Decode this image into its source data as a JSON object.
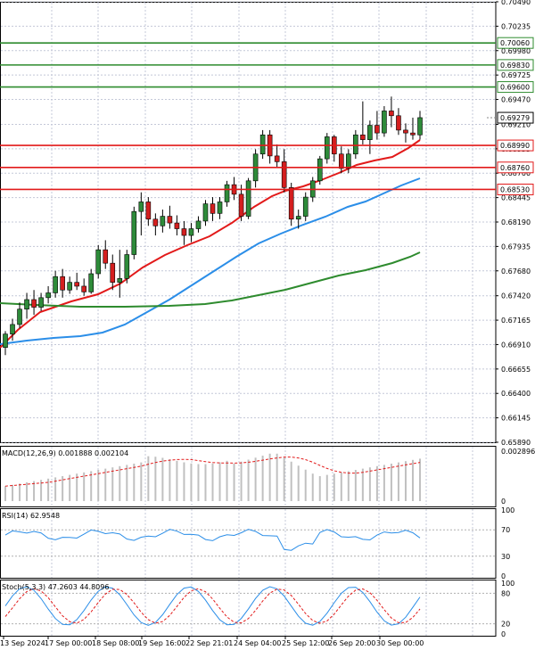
{
  "symbol": "NZDUSD",
  "colors": {
    "bull": "#2e8b3a",
    "bear": "#d41f1f",
    "sma_fast": "#e21a1a",
    "sma_mid": "#2b8ee8",
    "sma_slow": "#2e8b2e",
    "support": "#e21a1a",
    "resistance": "#2e8b2e",
    "grid": "#c4c8d8",
    "macd_hist": "#c0c0c0",
    "macd_signal": "#e21a1a",
    "rsi_line": "#2b8ee8",
    "stoch_main": "#2b8ee8",
    "stoch_signal": "#e21a1a"
  },
  "main_panel": {
    "price_ticks": [
      "0.70490",
      "0.70235",
      "0.69980",
      "0.69725",
      "0.69470",
      "0.69210",
      "0.68955",
      "0.68700",
      "0.68445",
      "0.68190",
      "0.67935",
      "0.67680",
      "0.67420",
      "0.67165",
      "0.66910",
      "0.66655",
      "0.66400",
      "0.66145",
      "0.65890"
    ],
    "current_price": "0.69279",
    "resistance_levels": [
      "0.70060",
      "0.69830",
      "0.69600"
    ],
    "support_levels": [
      "0.68990",
      "0.68760",
      "0.68530"
    ]
  },
  "macd": {
    "label": "MACD(12,26,9) 0.001888 0.002104",
    "ticks": [
      "0.002896",
      "0"
    ]
  },
  "rsi": {
    "label": "RSI(14) 62.9548",
    "ticks": [
      "100",
      "70",
      "30",
      "0"
    ]
  },
  "stoch": {
    "label": "Stoch(5,3,3) 47.2603 44.8096",
    "ticks": [
      "100",
      "80",
      "20",
      "0"
    ]
  },
  "time_labels": [
    "13 Sep 2024",
    "17 Sep 00:00",
    "18 Sep 08:00",
    "19 Sep 16:00",
    "22 Sep 21:01",
    "24 Sep 04:00",
    "25 Sep 12:00",
    "26 Sep 20:00",
    "30 Sep 00:00"
  ],
  "chart_data": {
    "type": "candlestick",
    "y_range": [
      0.6589,
      0.7049
    ],
    "candles": [
      [
        0.6688,
        0.6705,
        0.668,
        0.6702
      ],
      [
        0.6702,
        0.6718,
        0.6695,
        0.6712
      ],
      [
        0.6712,
        0.6735,
        0.6708,
        0.6728
      ],
      [
        0.6728,
        0.6745,
        0.6718,
        0.6738
      ],
      [
        0.6738,
        0.6748,
        0.6722,
        0.673
      ],
      [
        0.673,
        0.6745,
        0.6726,
        0.674
      ],
      [
        0.674,
        0.6752,
        0.6734,
        0.6745
      ],
      [
        0.6745,
        0.6768,
        0.674,
        0.6762
      ],
      [
        0.6762,
        0.677,
        0.674,
        0.6748
      ],
      [
        0.6748,
        0.6762,
        0.6744,
        0.6756
      ],
      [
        0.6756,
        0.6766,
        0.6748,
        0.6752
      ],
      [
        0.6752,
        0.676,
        0.6742,
        0.6746
      ],
      [
        0.6746,
        0.677,
        0.6744,
        0.6765
      ],
      [
        0.6765,
        0.6795,
        0.676,
        0.679
      ],
      [
        0.679,
        0.68,
        0.677,
        0.6776
      ],
      [
        0.6776,
        0.6785,
        0.6748,
        0.6756
      ],
      [
        0.6756,
        0.679,
        0.674,
        0.676
      ],
      [
        0.676,
        0.679,
        0.6755,
        0.6785
      ],
      [
        0.6785,
        0.6835,
        0.678,
        0.683
      ],
      [
        0.683,
        0.685,
        0.6805,
        0.684
      ],
      [
        0.684,
        0.6845,
        0.6815,
        0.6822
      ],
      [
        0.6822,
        0.6828,
        0.6805,
        0.6815
      ],
      [
        0.6815,
        0.6832,
        0.6808,
        0.6825
      ],
      [
        0.6825,
        0.6836,
        0.6812,
        0.6818
      ],
      [
        0.6818,
        0.6826,
        0.6805,
        0.6812
      ],
      [
        0.6812,
        0.682,
        0.6795,
        0.6805
      ],
      [
        0.6805,
        0.6818,
        0.6798,
        0.6812
      ],
      [
        0.6812,
        0.6825,
        0.6808,
        0.682
      ],
      [
        0.682,
        0.6842,
        0.6815,
        0.6838
      ],
      [
        0.6838,
        0.6845,
        0.682,
        0.6828
      ],
      [
        0.6828,
        0.6845,
        0.6822,
        0.684
      ],
      [
        0.684,
        0.6862,
        0.6835,
        0.6858
      ],
      [
        0.6858,
        0.6866,
        0.6842,
        0.6848
      ],
      [
        0.6848,
        0.6858,
        0.682,
        0.6825
      ],
      [
        0.6825,
        0.6865,
        0.6822,
        0.6862
      ],
      [
        0.6862,
        0.6895,
        0.6855,
        0.689
      ],
      [
        0.689,
        0.6915,
        0.6885,
        0.691
      ],
      [
        0.691,
        0.6915,
        0.688,
        0.6888
      ],
      [
        0.6888,
        0.69,
        0.6876,
        0.6882
      ],
      [
        0.6882,
        0.6895,
        0.685,
        0.6855
      ],
      [
        0.6855,
        0.686,
        0.6815,
        0.6822
      ],
      [
        0.6822,
        0.6832,
        0.6812,
        0.6825
      ],
      [
        0.6825,
        0.685,
        0.682,
        0.6845
      ],
      [
        0.6845,
        0.6866,
        0.684,
        0.6862
      ],
      [
        0.6862,
        0.6888,
        0.6858,
        0.6885
      ],
      [
        0.6885,
        0.6912,
        0.688,
        0.6908
      ],
      [
        0.6908,
        0.691,
        0.6882,
        0.689
      ],
      [
        0.689,
        0.6898,
        0.687,
        0.6875
      ],
      [
        0.6875,
        0.6895,
        0.687,
        0.689
      ],
      [
        0.689,
        0.6915,
        0.6885,
        0.691
      ],
      [
        0.691,
        0.6945,
        0.69,
        0.6905
      ],
      [
        0.6905,
        0.6925,
        0.689,
        0.692
      ],
      [
        0.692,
        0.6935,
        0.6905,
        0.6912
      ],
      [
        0.6912,
        0.694,
        0.6908,
        0.6935
      ],
      [
        0.6935,
        0.695,
        0.6918,
        0.693
      ],
      [
        0.693,
        0.6938,
        0.691,
        0.6915
      ],
      [
        0.6915,
        0.6922,
        0.6902,
        0.6912
      ],
      [
        0.6912,
        0.6928,
        0.6905,
        0.691
      ],
      [
        0.691,
        0.6935,
        0.6905,
        0.6928
      ]
    ]
  }
}
